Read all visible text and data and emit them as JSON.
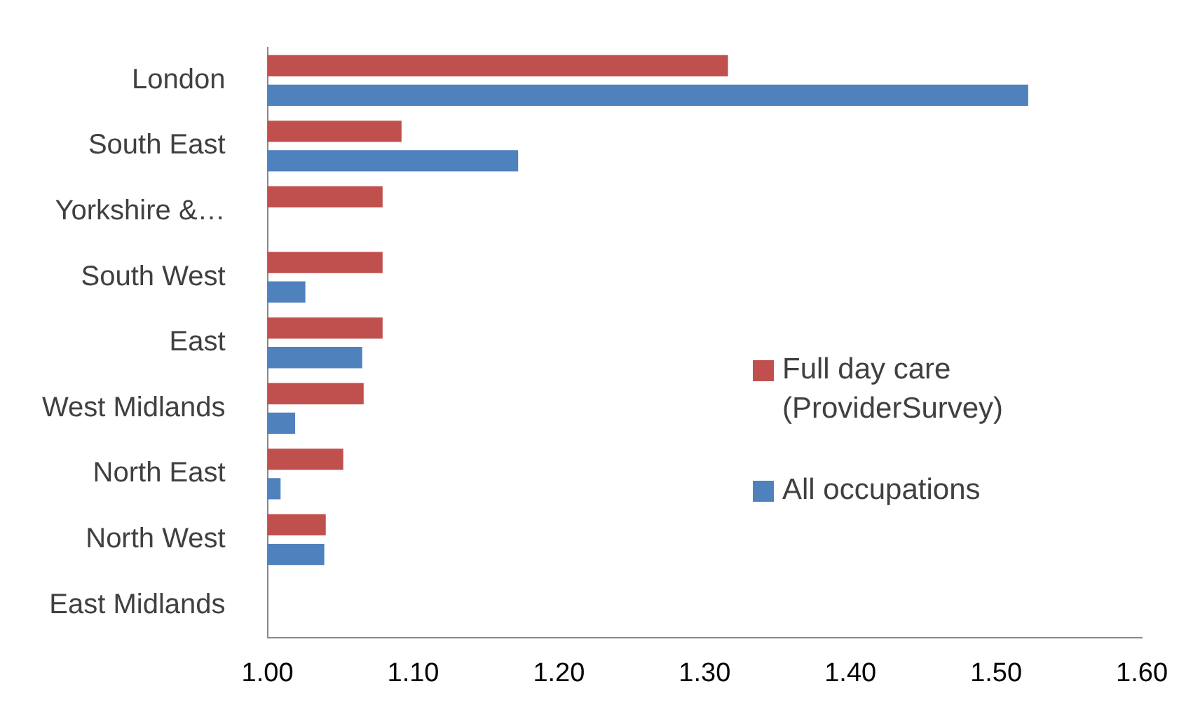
{
  "chart_data": {
    "type": "bar",
    "orientation": "horizontal",
    "categories": [
      "London",
      "South East",
      "Yorkshire &…",
      "South West",
      "East",
      "West Midlands",
      "North East",
      "North West",
      "East Midlands"
    ],
    "series": [
      {
        "name": "Full day care (ProviderSurvey)",
        "color": "#c0504d",
        "values": [
          1.316,
          1.092,
          1.079,
          1.079,
          1.079,
          1.066,
          1.052,
          1.04,
          null
        ]
      },
      {
        "name": "All occupations",
        "color": "#4f81bd",
        "values": [
          1.522,
          1.172,
          null,
          1.026,
          1.065,
          1.019,
          1.009,
          1.039,
          null
        ]
      }
    ],
    "xlim": [
      1.0,
      1.6
    ],
    "xticks": [
      {
        "value": 1.0,
        "label": "1.00"
      },
      {
        "value": 1.1,
        "label": "1.10"
      },
      {
        "value": 1.2,
        "label": "1.20"
      },
      {
        "value": 1.3,
        "label": "1.30"
      },
      {
        "value": 1.4,
        "label": "1.40"
      },
      {
        "value": 1.5,
        "label": "1.50"
      },
      {
        "value": 1.6,
        "label": "1.60"
      }
    ],
    "grid": false,
    "legend": "right"
  }
}
